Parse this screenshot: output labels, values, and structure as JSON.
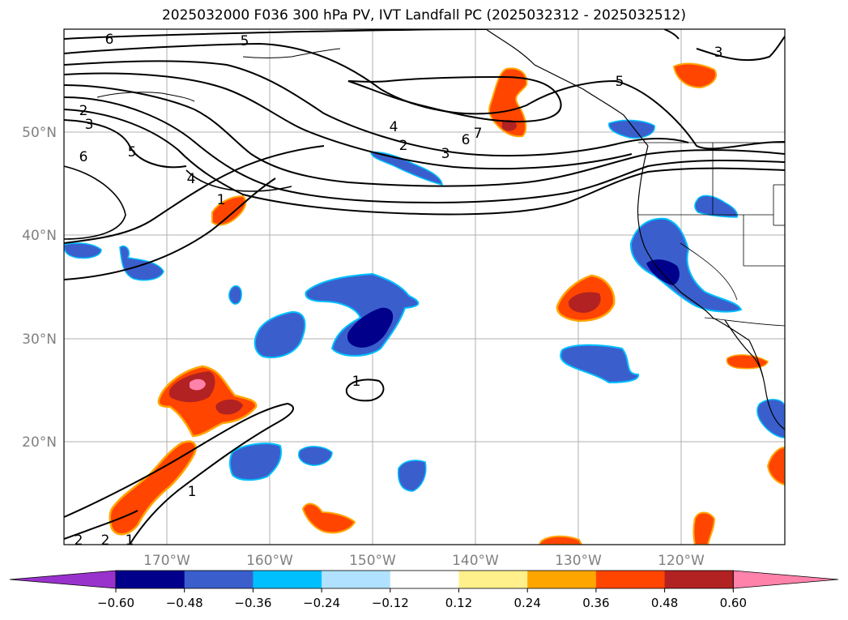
{
  "title": "2025032000 F036 300 hPa PV, IVT Landfall PC (2025032312 - 2025032512)",
  "map": {
    "lon_ticks": [
      "170°W",
      "160°W",
      "150°W",
      "140°W",
      "130°W",
      "120°W"
    ],
    "lat_ticks": [
      "50°N",
      "40°N",
      "30°N",
      "20°N"
    ],
    "contour_labels": [
      "6",
      "5",
      "2",
      "3",
      "6",
      "5",
      "4",
      "1",
      "4",
      "2",
      "3",
      "6",
      "7",
      "5",
      "3",
      "1",
      "1",
      "2",
      "2",
      "1"
    ]
  },
  "colorbar": {
    "colors": [
      "#9932cc",
      "#00008b",
      "#3a5fcd",
      "#00bfff",
      "#b0e2ff",
      "#ffffff",
      "#fff08c",
      "#ffa500",
      "#ff4500",
      "#b22222",
      "#ff82ab"
    ],
    "tick_labels": [
      "−0.60",
      "−0.48",
      "−0.36",
      "−0.24",
      "−0.12",
      "0.12",
      "0.24",
      "0.36",
      "0.48",
      "0.60"
    ]
  }
}
